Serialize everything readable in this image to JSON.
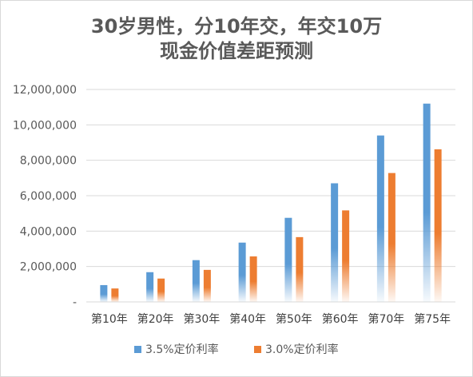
{
  "chart_data": {
    "type": "bar",
    "title_line1": "30岁男性，分10年交，年交10万",
    "title_line2": "现金价值差距预测",
    "categories": [
      "第10年",
      "第20年",
      "第30年",
      "第40年",
      "第50年",
      "第60年",
      "第70年",
      "第75年"
    ],
    "series": [
      {
        "name": "3.5%定价利率",
        "color": "#5b9bd5",
        "values": [
          950000,
          1680000,
          2360000,
          3350000,
          4750000,
          6700000,
          9400000,
          11200000
        ]
      },
      {
        "name": "3.0%定价利率",
        "color": "#ed7d31",
        "values": [
          760000,
          1320000,
          1810000,
          2570000,
          3660000,
          5170000,
          7280000,
          8620000
        ]
      }
    ],
    "y_ticks": [
      "-",
      "2,000,000",
      "4,000,000",
      "6,000,000",
      "8,000,000",
      "10,000,000",
      "12,000,000"
    ],
    "ylim": [
      0,
      12000000
    ],
    "grid": true,
    "legend_position": "bottom"
  }
}
